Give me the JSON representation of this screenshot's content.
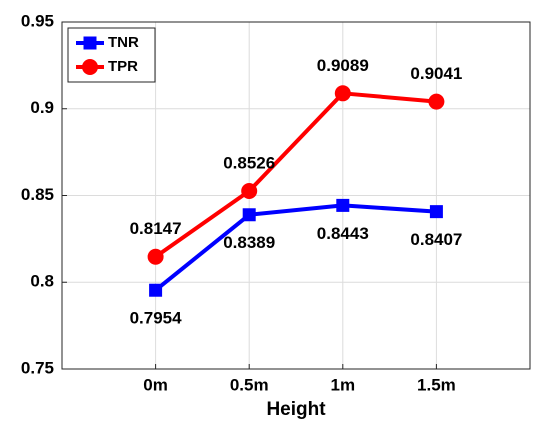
{
  "chart_data": {
    "type": "line",
    "x_label": "Height",
    "categories": [
      "0m",
      "0.5m",
      "1m",
      "1.5m"
    ],
    "series": [
      {
        "name": "TNR",
        "color": "#0000ff",
        "marker": "square",
        "values": [
          0.7954,
          0.8389,
          0.8443,
          0.8407
        ]
      },
      {
        "name": "TPR",
        "color": "#ff0000",
        "marker": "circle",
        "values": [
          0.8147,
          0.8526,
          0.9089,
          0.9041
        ]
      }
    ],
    "ylim": [
      0.75,
      0.95
    ],
    "yticks": [
      0.75,
      0.8,
      0.85,
      0.9,
      0.95
    ],
    "grid": true,
    "legend": "upper left"
  }
}
